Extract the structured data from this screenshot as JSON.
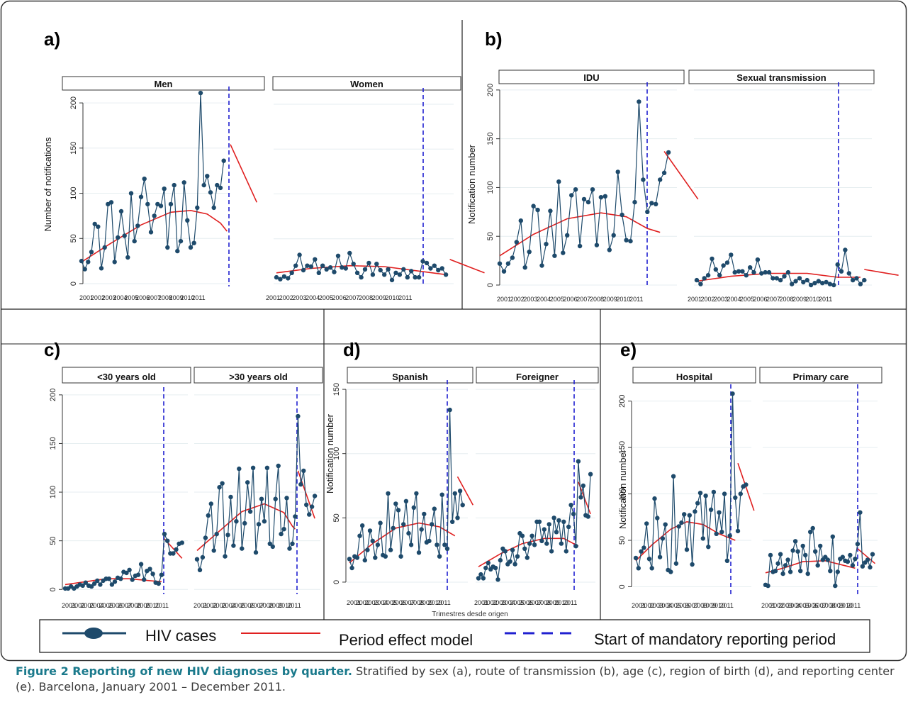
{
  "caption": {
    "title": "Figure 2 Reporting of new HIV diagnoses by quarter.",
    "text": " Stratified by sex (a), route of transmission (b), age (c), region of birth (d), and reporting center (e). Barcelona, January 2001 – December 2011."
  },
  "colors": {
    "cases": "#1e4a6b",
    "model": "#e02020",
    "mandatory": "#2020d0",
    "grid": "#e6eef0"
  },
  "legend": {
    "cases": "HIV cases",
    "model": "Period effect model",
    "mandatory": "Start of mandatory reporting period"
  },
  "x_ticks": [
    "2001",
    "2002",
    "2003",
    "2004",
    "2005",
    "2006",
    "2007",
    "2008",
    "2009",
    "2010",
    "2011"
  ],
  "chart_data": [
    {
      "id": "a",
      "label": "a)",
      "type": "line",
      "ylabel": "Number of notifications",
      "xlabel": "",
      "ylim": [
        0,
        215
      ],
      "yticks": [
        0,
        50,
        100,
        150,
        200
      ],
      "panels": [
        {
          "title": "Men",
          "cases": [
            25,
            16,
            24,
            35,
            66,
            63,
            17,
            40,
            88,
            90,
            24,
            51,
            80,
            53,
            29,
            100,
            47,
            64,
            96,
            116,
            88,
            57,
            75,
            88,
            86,
            105,
            40,
            88,
            109,
            36,
            47,
            112,
            70,
            40,
            45,
            84,
            211,
            109,
            119,
            101,
            84,
            109,
            106,
            136
          ],
          "model": {
            "pre": [
              [
                1,
                24
              ],
              [
                10,
                45
              ],
              [
                19,
                65
              ],
              [
                28,
                79
              ],
              [
                34,
                81
              ],
              [
                39,
                77
              ],
              [
                43,
                67
              ],
              [
                45,
                58
              ]
            ],
            "post": [
              [
                46,
                154
              ],
              [
                54,
                90
              ]
            ]
          }
        },
        {
          "title": "Women",
          "cases": [
            7,
            5,
            8,
            6,
            12,
            20,
            32,
            15,
            20,
            19,
            27,
            12,
            20,
            16,
            18,
            13,
            31,
            18,
            17,
            34,
            22,
            12,
            7,
            16,
            23,
            10,
            22,
            15,
            10,
            16,
            4,
            12,
            10,
            16,
            7,
            14,
            7,
            7,
            25,
            23,
            17,
            20,
            15,
            17,
            10
          ],
          "model": {
            "pre": [
              [
                1,
                12
              ],
              [
                10,
                17
              ],
              [
                20,
                20
              ],
              [
                29,
                19
              ],
              [
                38,
                14
              ],
              [
                45,
                10
              ]
            ],
            "post": [
              [
                46,
                27
              ],
              [
                55,
                12
              ]
            ]
          }
        }
      ]
    },
    {
      "id": "b",
      "label": "b)",
      "type": "line",
      "ylabel": "Notification number",
      "xlabel": "",
      "ylim": [
        0,
        205
      ],
      "yticks": [
        0,
        50,
        100,
        150,
        200
      ],
      "panels": [
        {
          "title": "IDU",
          "cases": [
            22,
            14,
            22,
            28,
            44,
            66,
            18,
            34,
            81,
            77,
            20,
            42,
            76,
            30,
            106,
            33,
            51,
            92,
            98,
            40,
            88,
            85,
            98,
            41,
            90,
            91,
            36,
            51,
            116,
            72,
            46,
            45,
            85,
            188,
            108,
            75,
            84,
            83,
            108,
            115,
            136
          ],
          "model": {
            "pre": [
              [
                1,
                30
              ],
              [
                9,
                52
              ],
              [
                17,
                68
              ],
              [
                25,
                74
              ],
              [
                31,
                70
              ],
              [
                36,
                58
              ],
              [
                39,
                54
              ]
            ],
            "post": [
              [
                40,
                137
              ],
              [
                48,
                88
              ]
            ]
          }
        },
        {
          "title": "Sexual transmission",
          "cases": [
            5,
            1,
            7,
            10,
            27,
            16,
            10,
            20,
            23,
            31,
            13,
            14,
            14,
            10,
            18,
            13,
            26,
            12,
            13,
            13,
            7,
            7,
            5,
            9,
            13,
            1,
            4,
            7,
            3,
            5,
            0,
            2,
            4,
            2,
            3,
            1,
            0,
            21,
            14,
            36,
            12,
            5,
            7,
            1,
            5
          ],
          "model": {
            "pre": [
              [
                1,
                4
              ],
              [
                10,
                9
              ],
              [
                20,
                12
              ],
              [
                30,
                12
              ],
              [
                38,
                8
              ],
              [
                44,
                8
              ]
            ],
            "post": [
              [
                45,
                16
              ],
              [
                54,
                10
              ]
            ]
          }
        }
      ]
    },
    {
      "id": "c",
      "label": "c)",
      "type": "line",
      "ylabel": "",
      "xlabel": "",
      "ylim": [
        -2,
        205
      ],
      "yticks": [
        0,
        50,
        100,
        150,
        200
      ],
      "panels": [
        {
          "title": "<30 years old",
          "cases": [
            1,
            1,
            3,
            1,
            3,
            5,
            4,
            7,
            4,
            3,
            6,
            9,
            5,
            9,
            11,
            11,
            5,
            8,
            12,
            11,
            18,
            17,
            20,
            10,
            14,
            15,
            26,
            10,
            19,
            21,
            16,
            7,
            6,
            15,
            57,
            50,
            37,
            37,
            41,
            47,
            48
          ],
          "model": {
            "pre": [
              [
                1,
                5
              ],
              [
                8,
                8
              ],
              [
                15,
                11
              ],
              [
                23,
                11
              ],
              [
                30,
                9
              ],
              [
                34,
                8
              ]
            ],
            "post": [
              [
                35,
                52
              ],
              [
                41,
                32
              ]
            ]
          }
        },
        {
          "title": ">30 years old",
          "cases": [
            31,
            20,
            33,
            53,
            76,
            88,
            40,
            57,
            105,
            109,
            34,
            56,
            95,
            45,
            70,
            124,
            42,
            68,
            110,
            80,
            125,
            38,
            67,
            93,
            70,
            125,
            47,
            44,
            93,
            127,
            57,
            62,
            94,
            42,
            47,
            75,
            178,
            108,
            122,
            87,
            77,
            85,
            96
          ],
          "model": {
            "pre": [
              [
                1,
                40
              ],
              [
                9,
                60
              ],
              [
                17,
                80
              ],
              [
                25,
                88
              ],
              [
                32,
                79
              ],
              [
                35,
                65
              ],
              [
                36,
                62
              ]
            ],
            "post": [
              [
                37,
                122
              ],
              [
                43,
                73
              ]
            ]
          }
        }
      ]
    },
    {
      "id": "d",
      "label": "d)",
      "type": "line",
      "ylabel": "Notification number",
      "xlabel": "Trimestres desde origen",
      "ylim": [
        -5,
        155
      ],
      "yticks": [
        0,
        50,
        100,
        150
      ],
      "panels": [
        {
          "title": "Spanish",
          "cases": [
            18,
            11,
            20,
            19,
            36,
            44,
            17,
            25,
            40,
            32,
            19,
            29,
            46,
            21,
            20,
            69,
            25,
            42,
            61,
            56,
            20,
            45,
            63,
            38,
            29,
            58,
            69,
            23,
            41,
            53,
            31,
            32,
            45,
            57,
            29,
            20,
            68,
            29,
            26,
            134,
            47,
            69,
            50,
            71,
            60
          ],
          "model": {
            "pre": [
              [
                1,
                15
              ],
              [
                10,
                30
              ],
              [
                19,
                42
              ],
              [
                28,
                46
              ],
              [
                36,
                43
              ],
              [
                42,
                36
              ]
            ],
            "post": [
              [
                43,
                82
              ],
              [
                49,
                60
              ]
            ]
          }
        },
        {
          "title": "Foreigner",
          "cases": [
            3,
            6,
            3,
            11,
            15,
            10,
            12,
            11,
            2,
            17,
            26,
            24,
            14,
            16,
            25,
            14,
            20,
            38,
            36,
            26,
            19,
            30,
            36,
            29,
            47,
            47,
            32,
            41,
            30,
            45,
            24,
            50,
            39,
            48,
            30,
            47,
            24,
            43,
            60,
            53,
            28,
            94,
            66,
            75,
            52,
            51,
            84
          ],
          "model": {
            "pre": [
              [
                1,
                12
              ],
              [
                10,
                22
              ],
              [
                19,
                30
              ],
              [
                28,
                34
              ],
              [
                36,
                34
              ],
              [
                42,
                28
              ]
            ],
            "post": [
              [
                42,
                78
              ],
              [
                47,
                53
              ]
            ]
          }
        }
      ]
    },
    {
      "id": "e",
      "label": "e)",
      "type": "line",
      "ylabel": "Notification number",
      "xlabel": "",
      "ylim": [
        -5,
        215
      ],
      "yticks": [
        0,
        50,
        100,
        150,
        200
      ],
      "panels": [
        {
          "title": "Hospital",
          "cases": [
            31,
            20,
            38,
            42,
            68,
            30,
            20,
            95,
            74,
            32,
            52,
            67,
            18,
            16,
            119,
            25,
            65,
            69,
            78,
            40,
            77,
            24,
            81,
            90,
            101,
            52,
            98,
            43,
            83,
            102,
            57,
            80,
            59,
            100,
            28,
            55,
            208,
            96,
            60,
            100,
            108,
            110
          ],
          "model": {
            "pre": [
              [
                1,
                28
              ],
              [
                7,
                45
              ],
              [
                14,
                62
              ],
              [
                20,
                70
              ],
              [
                26,
                67
              ],
              [
                32,
                57
              ],
              [
                38,
                50
              ]
            ],
            "post": [
              [
                39,
                133
              ],
              [
                45,
                82
              ]
            ]
          }
        },
        {
          "title": "Primary care",
          "cases": [
            2,
            1,
            34,
            16,
            17,
            25,
            35,
            14,
            23,
            29,
            16,
            39,
            49,
            38,
            17,
            44,
            34,
            14,
            59,
            63,
            38,
            23,
            44,
            29,
            32,
            29,
            17,
            54,
            1,
            16,
            30,
            32,
            28,
            27,
            34,
            23,
            30,
            46,
            80,
            22,
            26,
            29,
            21,
            35
          ],
          "model": {
            "pre": [
              [
                1,
                15
              ],
              [
                8,
                20
              ],
              [
                16,
                27
              ],
              [
                25,
                28
              ],
              [
                34,
                22
              ],
              [
                37,
                20
              ]
            ],
            "post": [
              [
                38,
                41
              ],
              [
                45,
                25
              ]
            ]
          }
        }
      ]
    }
  ]
}
